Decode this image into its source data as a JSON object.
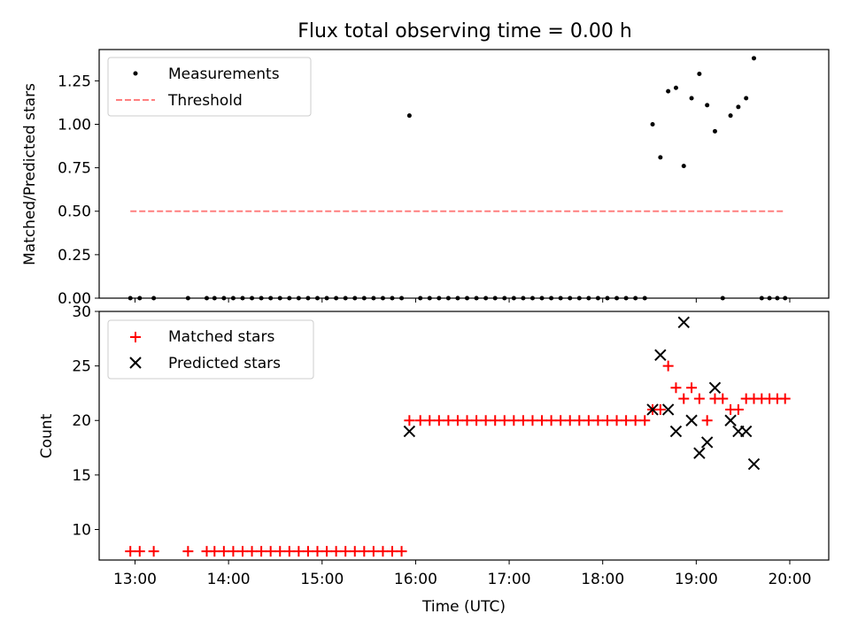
{
  "figure": {
    "title": "Flux total observing time = 0.00 h",
    "xlabel": "Time (UTC)"
  },
  "colors": {
    "measurement": "#000000",
    "threshold": "#ff7f7f",
    "matched": "#ff0000",
    "predicted": "#000000"
  },
  "chart_data": [
    {
      "type": "scatter",
      "ylabel": "Matched/Predicted stars",
      "xlim": [
        "12:37",
        "20:25"
      ],
      "ylim": [
        0,
        1.43
      ],
      "x_ticks": [
        "13:00",
        "14:00",
        "15:00",
        "16:00",
        "17:00",
        "18:00",
        "19:00",
        "20:00"
      ],
      "y_ticks": [
        "0.00",
        "0.25",
        "0.50",
        "0.75",
        "1.00",
        "1.25"
      ],
      "legend": {
        "placement": "upper left",
        "entries": [
          "Measurements",
          "Threshold"
        ]
      },
      "series": [
        {
          "name": "Measurements",
          "marker": "dot",
          "points": [
            [
              "12:57",
              0
            ],
            [
              "13:03",
              0
            ],
            [
              "13:12",
              0
            ],
            [
              "13:34",
              0
            ],
            [
              "13:46",
              0
            ],
            [
              "13:51",
              0
            ],
            [
              "13:57",
              0
            ],
            [
              "14:03",
              0
            ],
            [
              "14:09",
              0
            ],
            [
              "14:15",
              0
            ],
            [
              "14:21",
              0
            ],
            [
              "14:27",
              0
            ],
            [
              "14:33",
              0
            ],
            [
              "14:39",
              0
            ],
            [
              "14:45",
              0
            ],
            [
              "14:51",
              0
            ],
            [
              "14:57",
              0
            ],
            [
              "15:03",
              0
            ],
            [
              "15:09",
              0
            ],
            [
              "15:15",
              0
            ],
            [
              "15:21",
              0
            ],
            [
              "15:27",
              0
            ],
            [
              "15:33",
              0
            ],
            [
              "15:39",
              0
            ],
            [
              "15:45",
              0
            ],
            [
              "15:51",
              0
            ],
            [
              "15:56",
              1.05
            ],
            [
              "16:03",
              0
            ],
            [
              "16:09",
              0
            ],
            [
              "16:15",
              0
            ],
            [
              "16:21",
              0
            ],
            [
              "16:27",
              0
            ],
            [
              "16:33",
              0
            ],
            [
              "16:39",
              0
            ],
            [
              "16:45",
              0
            ],
            [
              "16:51",
              0
            ],
            [
              "16:57",
              0
            ],
            [
              "17:03",
              0
            ],
            [
              "17:09",
              0
            ],
            [
              "17:15",
              0
            ],
            [
              "17:21",
              0
            ],
            [
              "17:27",
              0
            ],
            [
              "17:33",
              0
            ],
            [
              "17:39",
              0
            ],
            [
              "17:45",
              0
            ],
            [
              "17:51",
              0
            ],
            [
              "17:57",
              0
            ],
            [
              "18:03",
              0
            ],
            [
              "18:09",
              0
            ],
            [
              "18:15",
              0
            ],
            [
              "18:21",
              0
            ],
            [
              "18:27",
              0
            ],
            [
              "18:32",
              1.0
            ],
            [
              "18:37",
              0.81
            ],
            [
              "18:42",
              1.19
            ],
            [
              "18:47",
              1.21
            ],
            [
              "18:52",
              0.76
            ],
            [
              "18:57",
              1.15
            ],
            [
              "19:02",
              1.29
            ],
            [
              "19:07",
              1.11
            ],
            [
              "19:12",
              0.96
            ],
            [
              "19:17",
              0
            ],
            [
              "19:22",
              1.05
            ],
            [
              "19:27",
              1.1
            ],
            [
              "19:32",
              1.15
            ],
            [
              "19:37",
              1.38
            ],
            [
              "19:42",
              0
            ],
            [
              "19:47",
              0
            ],
            [
              "19:52",
              0
            ],
            [
              "19:57",
              0
            ]
          ]
        },
        {
          "name": "Threshold",
          "style": "dashed",
          "points": [
            [
              "12:57",
              0.5
            ],
            [
              "19:57",
              0.5
            ]
          ]
        }
      ]
    },
    {
      "type": "scatter",
      "ylabel": "Count",
      "xlim": [
        "12:37",
        "20:25"
      ],
      "ylim": [
        7.2,
        30
      ],
      "x_ticks": [
        "13:00",
        "14:00",
        "15:00",
        "16:00",
        "17:00",
        "18:00",
        "19:00",
        "20:00"
      ],
      "y_ticks": [
        "10",
        "15",
        "20",
        "25",
        "30"
      ],
      "legend": {
        "placement": "upper left",
        "entries": [
          "Matched stars",
          "Predicted stars"
        ]
      },
      "series": [
        {
          "name": "Matched stars",
          "marker": "plus",
          "points": [
            [
              "12:57",
              8
            ],
            [
              "13:03",
              8
            ],
            [
              "13:12",
              8
            ],
            [
              "13:34",
              8
            ],
            [
              "13:46",
              8
            ],
            [
              "13:51",
              8
            ],
            [
              "13:57",
              8
            ],
            [
              "14:03",
              8
            ],
            [
              "14:09",
              8
            ],
            [
              "14:15",
              8
            ],
            [
              "14:21",
              8
            ],
            [
              "14:27",
              8
            ],
            [
              "14:33",
              8
            ],
            [
              "14:39",
              8
            ],
            [
              "14:45",
              8
            ],
            [
              "14:51",
              8
            ],
            [
              "14:57",
              8
            ],
            [
              "15:03",
              8
            ],
            [
              "15:09",
              8
            ],
            [
              "15:15",
              8
            ],
            [
              "15:21",
              8
            ],
            [
              "15:27",
              8
            ],
            [
              "15:33",
              8
            ],
            [
              "15:39",
              8
            ],
            [
              "15:45",
              8
            ],
            [
              "15:51",
              8
            ],
            [
              "15:56",
              20
            ],
            [
              "16:03",
              20
            ],
            [
              "16:09",
              20
            ],
            [
              "16:15",
              20
            ],
            [
              "16:21",
              20
            ],
            [
              "16:27",
              20
            ],
            [
              "16:33",
              20
            ],
            [
              "16:39",
              20
            ],
            [
              "16:45",
              20
            ],
            [
              "16:51",
              20
            ],
            [
              "16:57",
              20
            ],
            [
              "17:03",
              20
            ],
            [
              "17:09",
              20
            ],
            [
              "17:15",
              20
            ],
            [
              "17:21",
              20
            ],
            [
              "17:27",
              20
            ],
            [
              "17:33",
              20
            ],
            [
              "17:39",
              20
            ],
            [
              "17:45",
              20
            ],
            [
              "17:51",
              20
            ],
            [
              "17:57",
              20
            ],
            [
              "18:03",
              20
            ],
            [
              "18:09",
              20
            ],
            [
              "18:15",
              20
            ],
            [
              "18:21",
              20
            ],
            [
              "18:27",
              20
            ],
            [
              "18:32",
              21
            ],
            [
              "18:37",
              21
            ],
            [
              "18:42",
              25
            ],
            [
              "18:47",
              23
            ],
            [
              "18:52",
              22
            ],
            [
              "18:57",
              23
            ],
            [
              "19:02",
              22
            ],
            [
              "19:07",
              20
            ],
            [
              "19:12",
              22
            ],
            [
              "19:17",
              22
            ],
            [
              "19:22",
              21
            ],
            [
              "19:27",
              21
            ],
            [
              "19:32",
              22
            ],
            [
              "19:37",
              22
            ],
            [
              "19:42",
              22
            ],
            [
              "19:47",
              22
            ],
            [
              "19:52",
              22
            ],
            [
              "19:57",
              22
            ]
          ]
        },
        {
          "name": "Predicted stars",
          "marker": "x",
          "points": [
            [
              "15:56",
              19
            ],
            [
              "18:32",
              21
            ],
            [
              "18:37",
              26
            ],
            [
              "18:42",
              21
            ],
            [
              "18:47",
              19
            ],
            [
              "18:52",
              29
            ],
            [
              "18:57",
              20
            ],
            [
              "19:02",
              17
            ],
            [
              "19:07",
              18
            ],
            [
              "19:12",
              23
            ],
            [
              "19:22",
              20
            ],
            [
              "19:27",
              19
            ],
            [
              "19:32",
              19
            ],
            [
              "19:37",
              16
            ]
          ]
        }
      ]
    }
  ]
}
